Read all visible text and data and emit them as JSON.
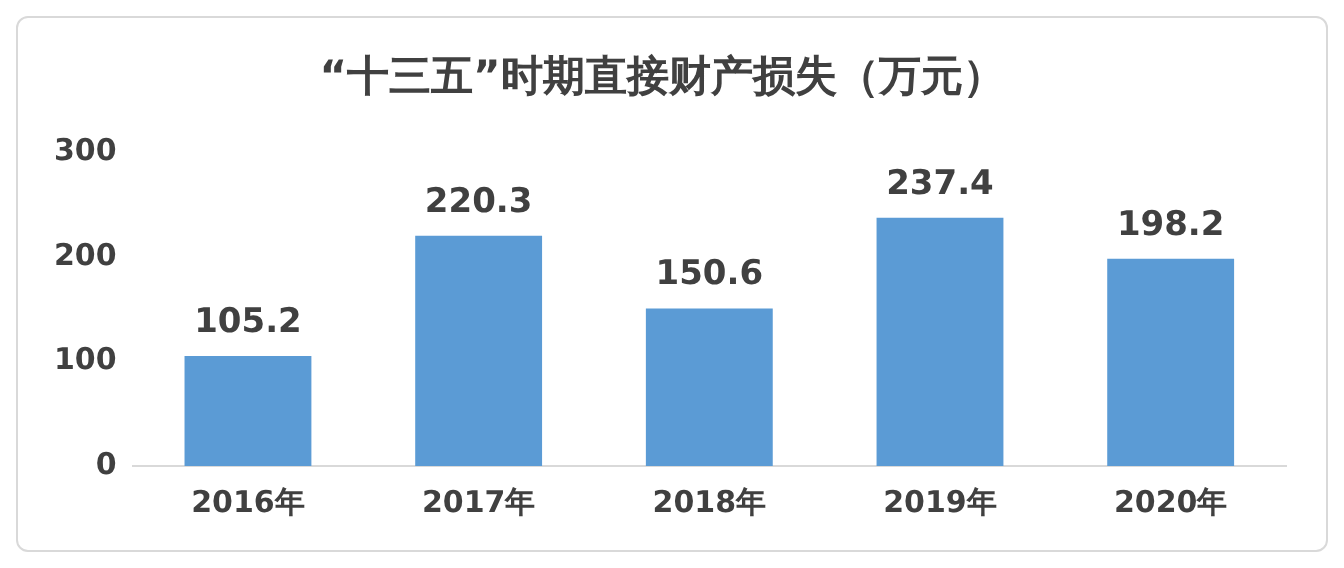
{
  "chart_data": {
    "type": "bar",
    "title": "“十三五”时期直接财产损失（万元）",
    "categories": [
      "2016年",
      "2017年",
      "2018年",
      "2019年",
      "2020年"
    ],
    "values": [
      105.2,
      220.3,
      150.6,
      237.4,
      198.2
    ],
    "color": "#5b9bd5",
    "ylim": [
      0,
      300
    ],
    "yticks": [
      0,
      100,
      200,
      300
    ],
    "grid": false,
    "data_labels": true
  }
}
